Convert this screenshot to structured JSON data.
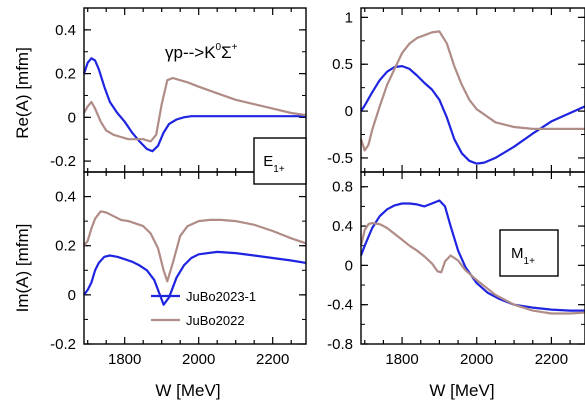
{
  "chart_data": {
    "type": "line",
    "xlabel": "W [MeV]",
    "xlim": [
      1690,
      2290
    ],
    "x_ticks": [
      "1800",
      "2000",
      "2200"
    ],
    "annotation": {
      "reaction": "γp-->K",
      "sup1": "0",
      "sigma": "Σ",
      "sup2": "+"
    },
    "series_names": [
      "JuBo2023-1",
      "JuBo2022"
    ],
    "colors": {
      "JuBo2023-1": "#1f24e0",
      "JuBo2022": "#b08c87"
    },
    "panels": [
      {
        "id": "re-e1p",
        "ylabel": "Re(A) [mfm]",
        "ylim": [
          -0.25,
          0.5
        ],
        "y_ticks": [
          "-0.2",
          "0",
          "0.2",
          "0.4"
        ],
        "series": [
          {
            "name": "JuBo2023-1",
            "x": [
              1690,
              1700,
              1710,
              1720,
              1730,
              1745,
              1760,
              1780,
              1800,
              1820,
              1840,
              1860,
              1875,
              1890,
              1905,
              1920,
              1940,
              1960,
              1980,
              2000,
              2050,
              2100,
              2150,
              2200,
              2250,
              2290
            ],
            "y": [
              0.2,
              0.25,
              0.27,
              0.26,
              0.22,
              0.14,
              0.07,
              0.02,
              -0.02,
              -0.07,
              -0.11,
              -0.145,
              -0.155,
              -0.13,
              -0.07,
              -0.03,
              -0.01,
              0.0,
              0.005,
              0.005,
              0.005,
              0.005,
              0.005,
              0.005,
              0.005,
              0.005
            ]
          },
          {
            "name": "JuBo2022",
            "x": [
              1690,
              1700,
              1710,
              1720,
              1735,
              1750,
              1770,
              1790,
              1810,
              1830,
              1850,
              1870,
              1885,
              1900,
              1915,
              1930,
              1950,
              1970,
              2000,
              2050,
              2100,
              2150,
              2200,
              2250,
              2290
            ],
            "y": [
              0.02,
              0.05,
              0.07,
              0.04,
              -0.02,
              -0.06,
              -0.08,
              -0.09,
              -0.1,
              -0.1,
              -0.1,
              -0.11,
              -0.08,
              0.06,
              0.17,
              0.18,
              0.17,
              0.16,
              0.14,
              0.11,
              0.08,
              0.06,
              0.04,
              0.02,
              0.01
            ]
          }
        ]
      },
      {
        "id": "re-m1p",
        "ylabel": "",
        "ylim": [
          -0.65,
          1.1
        ],
        "y_ticks": [
          "-0.5",
          "0",
          "0.5",
          "1"
        ],
        "series": [
          {
            "name": "JuBo2023-1",
            "x": [
              1690,
              1700,
              1720,
              1740,
              1760,
              1780,
              1800,
              1820,
              1840,
              1860,
              1880,
              1900,
              1920,
              1940,
              1960,
              1980,
              2000,
              2020,
              2050,
              2100,
              2150,
              2200,
              2250,
              2290
            ],
            "y": [
              0.0,
              0.06,
              0.2,
              0.33,
              0.42,
              0.47,
              0.48,
              0.45,
              0.38,
              0.3,
              0.23,
              0.12,
              -0.07,
              -0.3,
              -0.45,
              -0.53,
              -0.56,
              -0.55,
              -0.5,
              -0.38,
              -0.24,
              -0.11,
              -0.02,
              0.05
            ]
          },
          {
            "name": "JuBo2022",
            "x": [
              1690,
              1700,
              1710,
              1720,
              1740,
              1760,
              1780,
              1800,
              1820,
              1840,
              1860,
              1880,
              1900,
              1920,
              1940,
              1960,
              1980,
              2000,
              2050,
              2100,
              2150,
              2200,
              2250,
              2290
            ],
            "y": [
              -0.3,
              -0.42,
              -0.36,
              -0.2,
              0.05,
              0.28,
              0.45,
              0.62,
              0.72,
              0.78,
              0.81,
              0.84,
              0.85,
              0.72,
              0.48,
              0.28,
              0.12,
              0.02,
              -0.12,
              -0.17,
              -0.19,
              -0.19,
              -0.19,
              -0.19
            ]
          }
        ]
      },
      {
        "id": "im-e1p",
        "ylabel": "Im(A) [mfm]",
        "ylim": [
          -0.2,
          0.5
        ],
        "y_ticks": [
          "-0.2",
          "0",
          "0.2",
          "0.4"
        ],
        "series": [
          {
            "name": "JuBo2023-1",
            "x": [
              1690,
              1700,
              1710,
              1720,
              1730,
              1745,
              1760,
              1780,
              1800,
              1820,
              1840,
              1860,
              1880,
              1895,
              1905,
              1920,
              1940,
              1960,
              1980,
              2000,
              2050,
              2100,
              2150,
              2200,
              2250,
              2290
            ],
            "y": [
              0.0,
              0.02,
              0.05,
              0.1,
              0.13,
              0.155,
              0.16,
              0.155,
              0.145,
              0.135,
              0.12,
              0.1,
              0.06,
              0.0,
              -0.04,
              -0.01,
              0.07,
              0.12,
              0.15,
              0.165,
              0.175,
              0.17,
              0.16,
              0.15,
              0.14,
              0.13
            ]
          },
          {
            "name": "JuBo2022",
            "x": [
              1690,
              1700,
              1710,
              1720,
              1735,
              1750,
              1770,
              1790,
              1810,
              1830,
              1850,
              1870,
              1890,
              1905,
              1915,
              1930,
              1950,
              1970,
              2000,
              2030,
              2060,
              2100,
              2150,
              2200,
              2250,
              2290
            ],
            "y": [
              0.2,
              0.22,
              0.27,
              0.31,
              0.34,
              0.335,
              0.32,
              0.305,
              0.3,
              0.29,
              0.28,
              0.25,
              0.19,
              0.1,
              0.055,
              0.13,
              0.24,
              0.28,
              0.3,
              0.305,
              0.305,
              0.3,
              0.285,
              0.26,
              0.23,
              0.21
            ]
          }
        ]
      },
      {
        "id": "im-m1p",
        "ylabel": "",
        "ylim": [
          -0.8,
          0.95
        ],
        "y_ticks": [
          "-0.8",
          "-0.4",
          "0",
          "0.4",
          "0.8"
        ],
        "series": [
          {
            "name": "JuBo2023-1",
            "x": [
              1690,
              1700,
              1720,
              1740,
              1760,
              1780,
              1800,
              1820,
              1840,
              1860,
              1880,
              1900,
              1915,
              1930,
              1950,
              1970,
              2000,
              2030,
              2060,
              2100,
              2150,
              2200,
              2250,
              2290
            ],
            "y": [
              0.1,
              0.2,
              0.38,
              0.5,
              0.57,
              0.61,
              0.63,
              0.63,
              0.62,
              0.6,
              0.63,
              0.66,
              0.6,
              0.4,
              0.15,
              -0.02,
              -0.18,
              -0.28,
              -0.34,
              -0.4,
              -0.43,
              -0.45,
              -0.46,
              -0.46
            ]
          },
          {
            "name": "JuBo2022",
            "x": [
              1690,
              1700,
              1710,
              1720,
              1740,
              1760,
              1780,
              1800,
              1820,
              1840,
              1860,
              1880,
              1895,
              1905,
              1915,
              1930,
              1950,
              1970,
              2000,
              2050,
              2100,
              2150,
              2200,
              2250,
              2290
            ],
            "y": [
              0.2,
              0.36,
              0.42,
              0.43,
              0.42,
              0.38,
              0.32,
              0.26,
              0.2,
              0.15,
              0.09,
              0.02,
              -0.06,
              -0.07,
              0.04,
              0.1,
              0.05,
              -0.05,
              -0.15,
              -0.3,
              -0.4,
              -0.46,
              -0.49,
              -0.49,
              -0.48
            ]
          }
        ]
      }
    ],
    "box_labels": [
      {
        "panel": "re-e1p",
        "letter": "E",
        "sub": "1+"
      },
      {
        "panel": "im-m1p",
        "letter": "M",
        "sub": "1+"
      }
    ]
  }
}
